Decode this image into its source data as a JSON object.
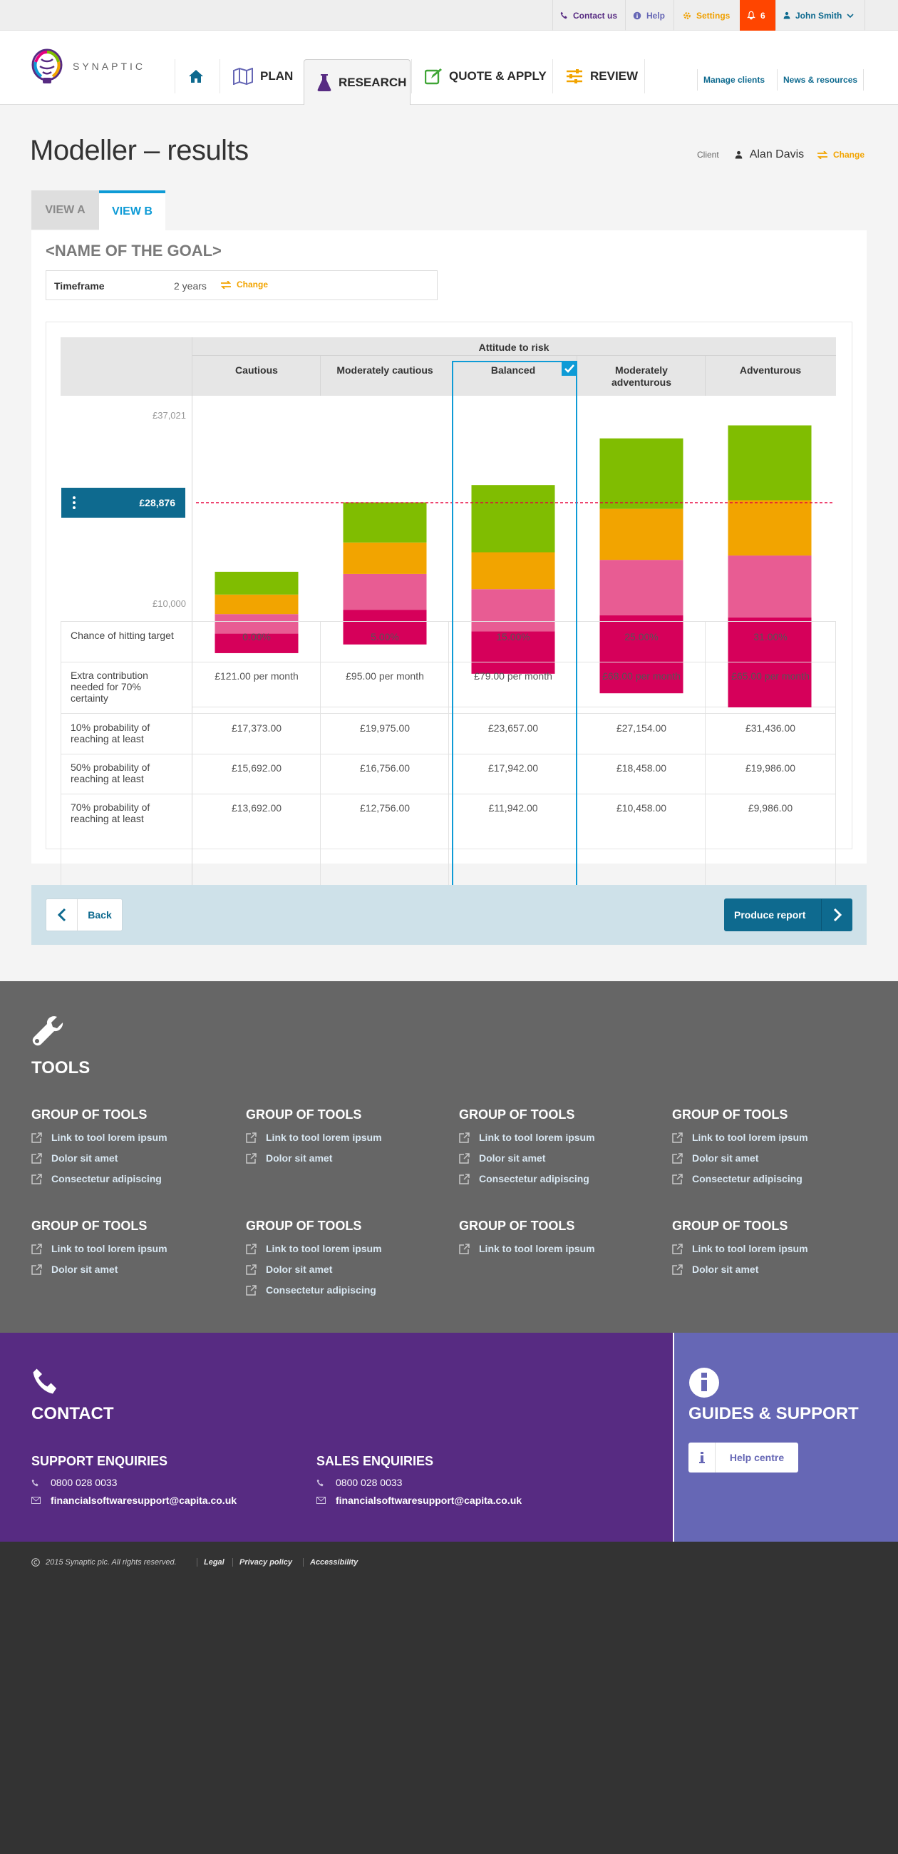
{
  "topbar": {
    "contact": "Contact us",
    "help": "Help",
    "settings": "Settings",
    "notifications_count": "6",
    "user": "John Smith",
    "colors": {
      "contact": "#572b82",
      "help": "#6667b5",
      "settings": "#f0a000",
      "alert_bg": "#ff4500",
      "user": "#0e6a8f"
    }
  },
  "brand": {
    "name": "SYNAPTIC"
  },
  "nav": {
    "items": [
      {
        "label": "",
        "icon": "home-icon"
      },
      {
        "label": "PLAN",
        "icon": "map-icon"
      },
      {
        "label": "RESEARCH",
        "icon": "flask-icon"
      },
      {
        "label": "QUOTE & APPLY",
        "icon": "edit-icon"
      },
      {
        "label": "REVIEW",
        "icon": "sliders-icon"
      }
    ],
    "manage_clients": "Manage clients",
    "news_resources": "News & resources"
  },
  "page": {
    "title": "Modeller – results",
    "client_label": "Client",
    "client_name": "Alan Davis",
    "change": "Change"
  },
  "tabs": [
    {
      "label": "VIEW A"
    },
    {
      "label": "VIEW B"
    }
  ],
  "goal": {
    "name": "<NAME OF THE GOAL>",
    "timeframe_label": "Timeframe",
    "timeframe_value": "2 years",
    "change": "Change"
  },
  "chart_data": {
    "type": "bar",
    "title": "Attitude to risk",
    "categories": [
      "Cautious",
      "Moderately cautious",
      "Balanced",
      "Moderately adventurous",
      "Adventurous"
    ],
    "selected_category": "Balanced",
    "ylim": [
      10000,
      37021
    ],
    "y_top_label": "£37,021",
    "y_bottom_label": "£10,000",
    "target_label": "£28,876",
    "target_value": 28876,
    "colors": [
      "#d6005a",
      "#e85c93",
      "#f2a400",
      "#80bd01"
    ],
    "bands": [
      {
        "low": 15000,
        "mid_low": 16800,
        "mid_high": 18600,
        "high": 20400,
        "top": 22500
      },
      {
        "low": 15800,
        "mid_low": 19000,
        "mid_high": 22300,
        "high": 25200,
        "top": 28900
      },
      {
        "low": 13100,
        "mid_low": 17000,
        "mid_high": 20900,
        "high": 24300,
        "top": 30500
      },
      {
        "low": 11300,
        "mid_low": 18500,
        "mid_high": 23600,
        "high": 28300,
        "top": 34800
      },
      {
        "low": 10000,
        "mid_low": 18300,
        "mid_high": 24000,
        "high": 29100,
        "top": 36000
      }
    ]
  },
  "results_table": {
    "rows": [
      {
        "label": "Chance of hitting target",
        "values": [
          "0.00%",
          "5.00%",
          "15.00%",
          "25.00%",
          "31.00%"
        ]
      },
      {
        "label": "Extra contribution needed for 70% certainty",
        "values": [
          "£121.00 per month",
          "£95.00 per month",
          "£79.00 per month",
          "£68.00 per month",
          "£65.00 per month"
        ]
      },
      {
        "label": "10% probability of reaching at least",
        "values": [
          "£17,373.00",
          "£19,975.00",
          "£23,657.00",
          "£27,154.00",
          "£31,436.00"
        ]
      },
      {
        "label": "50% probability of reaching at least",
        "values": [
          "£15,692.00",
          "£16,756.00",
          "£17,942.00",
          "£18,458.00",
          "£19,986.00"
        ]
      },
      {
        "label": "70% probability of reaching at least",
        "values": [
          "£13,692.00",
          "£12,756.00",
          "£11,942.00",
          "£10,458.00",
          "£9,986.00"
        ]
      }
    ]
  },
  "actions": {
    "back": "Back",
    "produce_report": "Produce report"
  },
  "tools": {
    "title": "TOOLS",
    "groups": [
      {
        "title": "GROUP OF TOOLS",
        "links": [
          "Link to tool lorem ipsum",
          "Dolor sit amet",
          "Consectetur adipiscing"
        ]
      },
      {
        "title": "GROUP OF TOOLS",
        "links": [
          "Link to tool lorem ipsum",
          "Dolor sit amet"
        ]
      },
      {
        "title": "GROUP OF TOOLS",
        "links": [
          "Link to tool lorem ipsum",
          "Dolor sit amet",
          "Consectetur adipiscing"
        ]
      },
      {
        "title": "GROUP OF TOOLS",
        "links": [
          "Link to tool lorem ipsum",
          "Dolor sit amet",
          "Consectetur adipiscing"
        ]
      },
      {
        "title": "GROUP OF TOOLS",
        "links": [
          "Link to tool lorem ipsum",
          "Dolor sit amet"
        ]
      },
      {
        "title": "GROUP OF TOOLS",
        "links": [
          "Link to tool lorem ipsum",
          "Dolor sit amet",
          "Consectetur adipiscing"
        ]
      },
      {
        "title": "GROUP OF TOOLS",
        "links": [
          "Link to tool lorem ipsum"
        ]
      },
      {
        "title": "GROUP OF TOOLS",
        "links": [
          "Link to tool lorem ipsum",
          "Dolor sit amet"
        ]
      }
    ]
  },
  "contact": {
    "title": "CONTACT",
    "support": {
      "title": "SUPPORT ENQUIRIES",
      "phone": "0800 028 0033",
      "email": "financialsoftwaresupport@capita.co.uk"
    },
    "sales": {
      "title": "SALES ENQUIRIES",
      "phone": "0800 028 0033",
      "email": "financialsoftwaresupport@capita.co.uk"
    }
  },
  "guides": {
    "title": "GUIDES & SUPPORT",
    "help_centre": "Help centre"
  },
  "footer": {
    "copyright": "2015 Synaptic plc. All rights reserved.",
    "legal": "Legal",
    "privacy": "Privacy policy",
    "accessibility": "Accessibility"
  }
}
